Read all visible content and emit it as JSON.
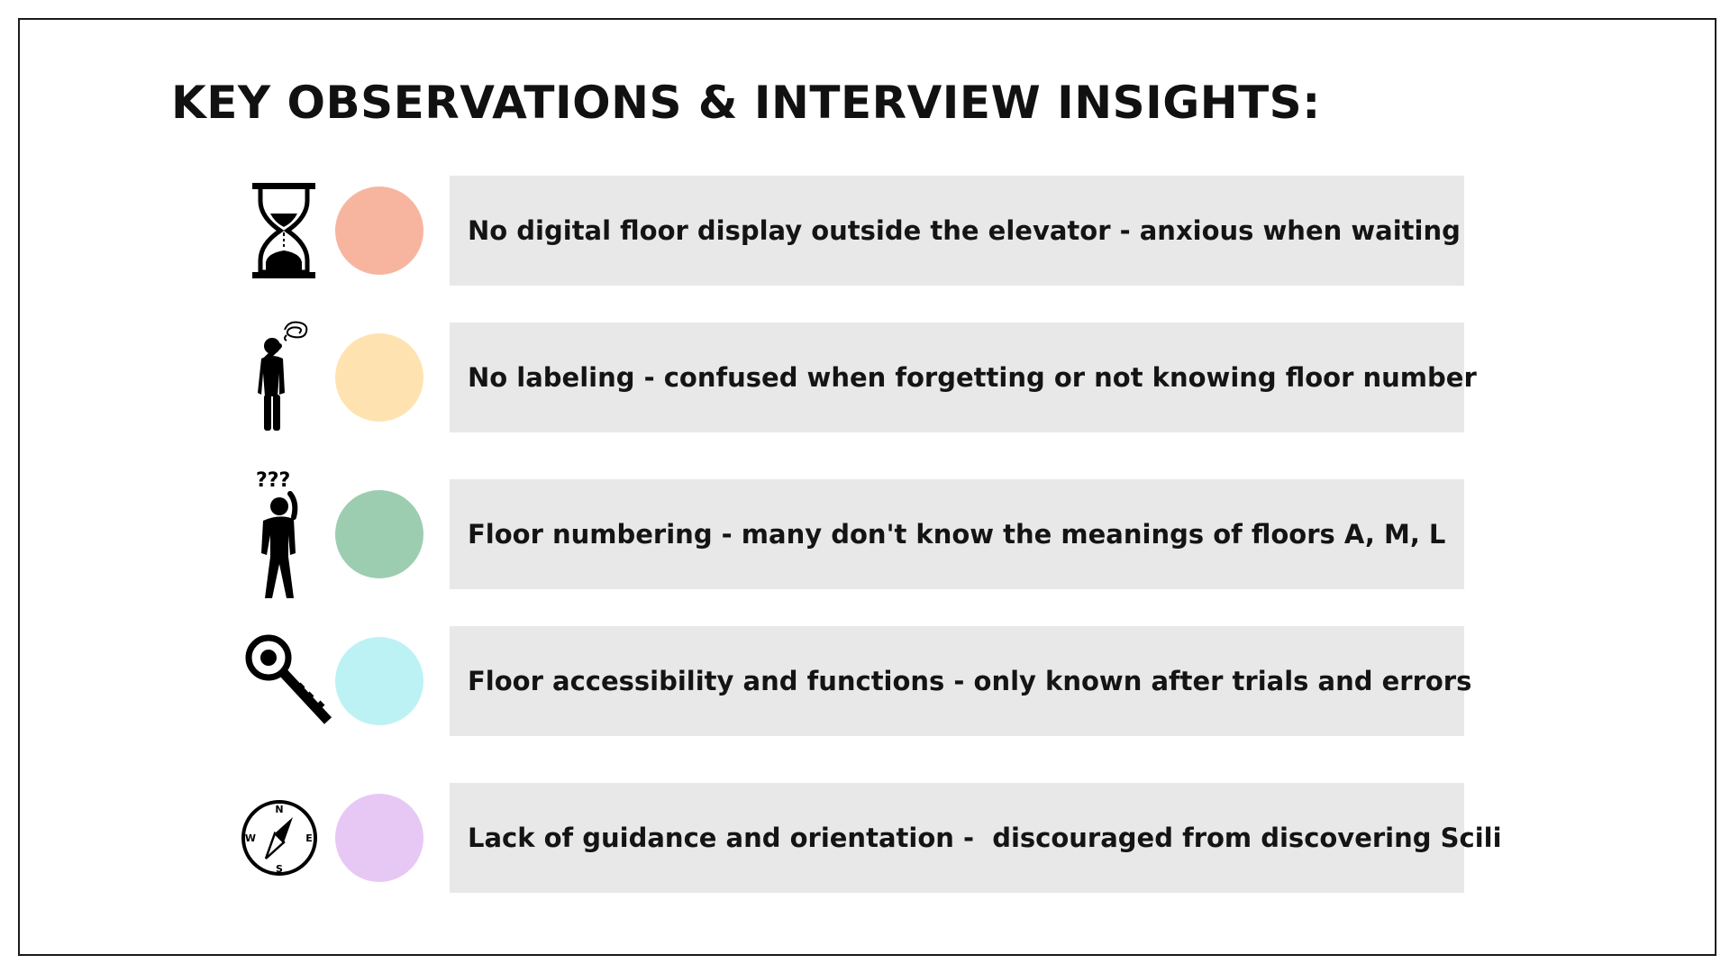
{
  "title": "KEY OBSERVATIONS & INTERVIEW INSIGHTS:",
  "insights": [
    {
      "icon": "hourglass-icon",
      "color": "#F7B5A0",
      "text": "No digital floor display outside the elevator - anxious when waiting"
    },
    {
      "icon": "confused-person-icon",
      "color": "#FEE3B1",
      "text": "No labeling - confused when forgetting or not knowing floor number"
    },
    {
      "icon": "questioning-person-icon",
      "color": "#9DCDB0",
      "text": "Floor numbering - many don't know the meanings of floors A, M, L"
    },
    {
      "icon": "key-icon",
      "color": "#BDF2F4",
      "text": "Floor accessibility and functions - only known after trials and errors"
    },
    {
      "icon": "compass-icon",
      "color": "#E7C8F5",
      "text": "Lack of guidance and orientation -  discouraged from discovering Scili"
    }
  ],
  "compass": {
    "n": "N",
    "s": "S",
    "e": "E",
    "w": "W"
  }
}
